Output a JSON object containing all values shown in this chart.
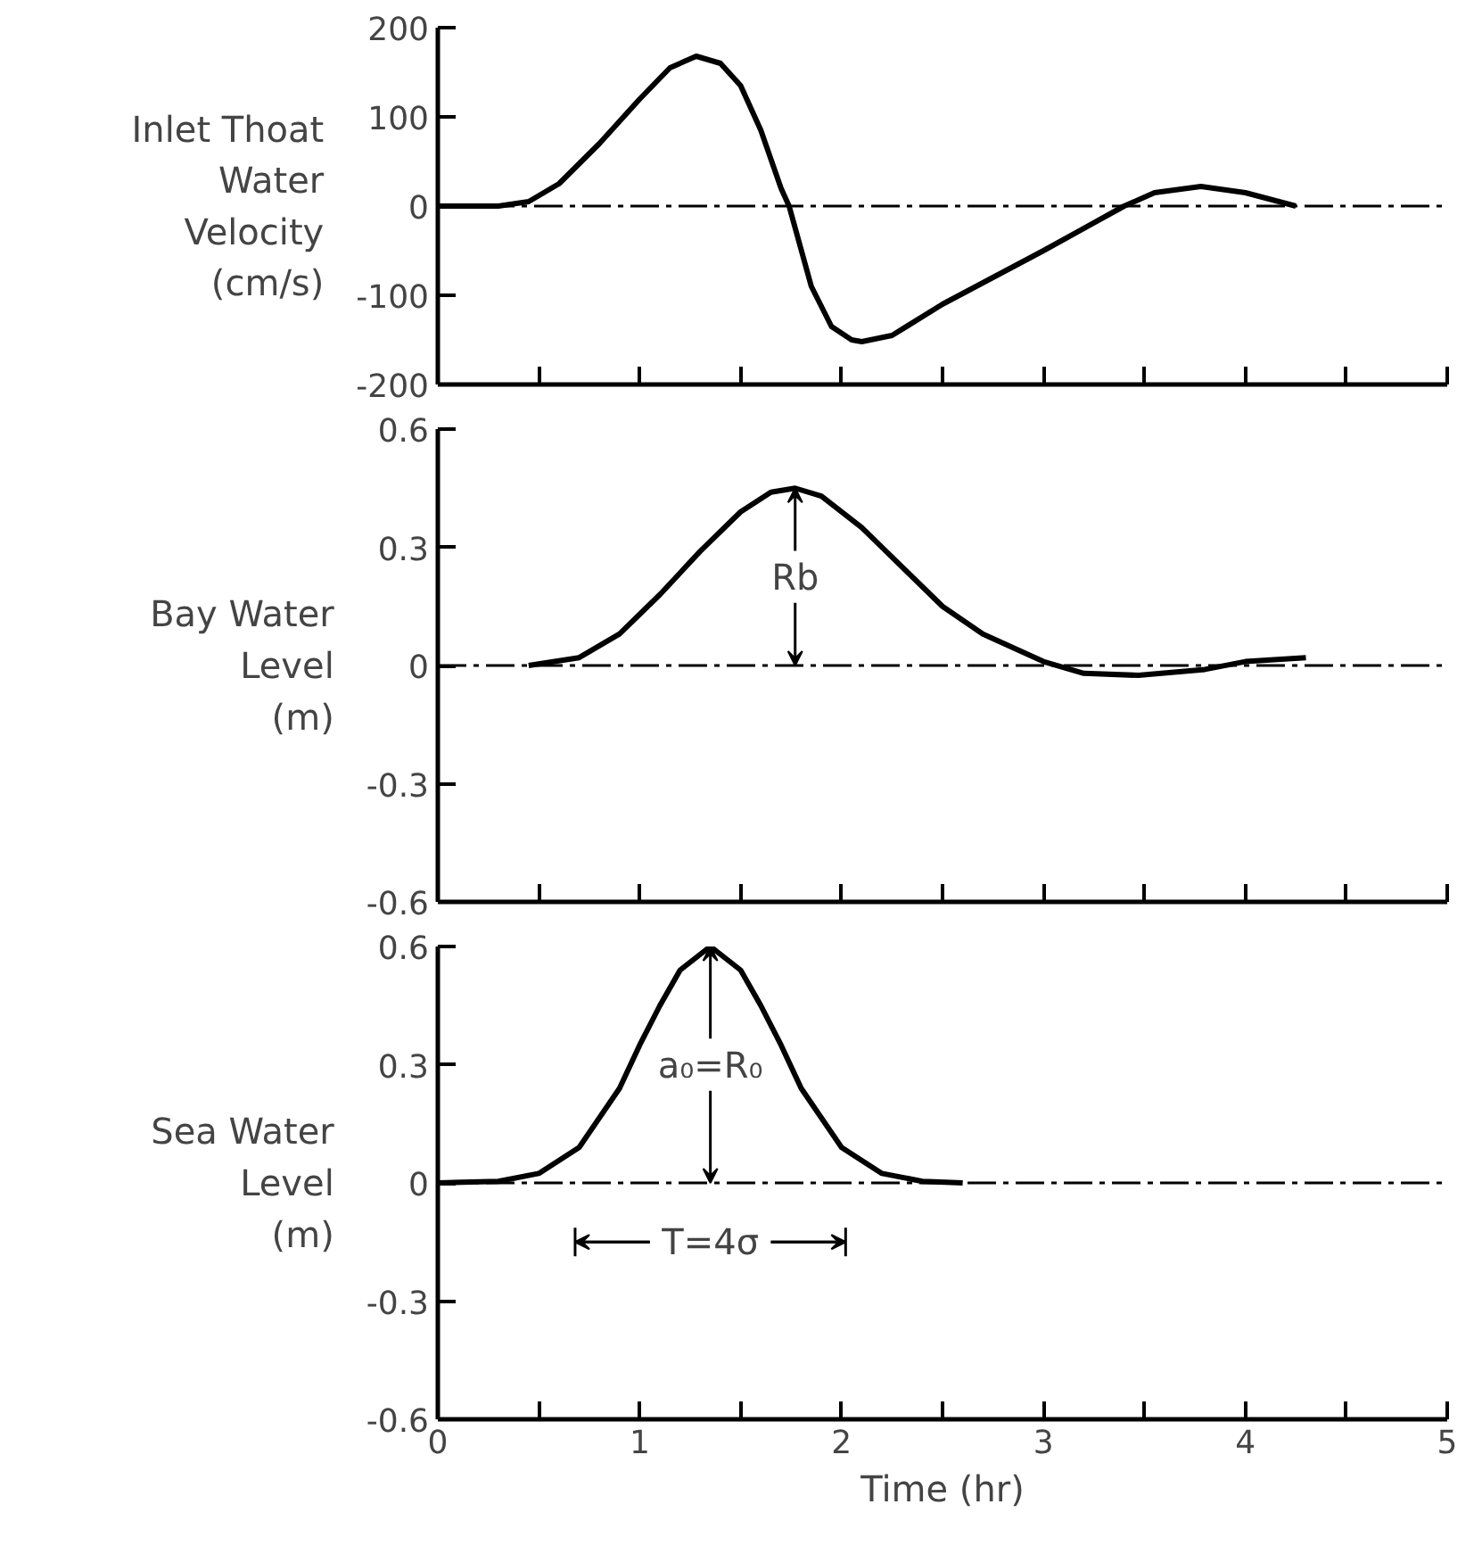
{
  "chart_data": [
    {
      "type": "line",
      "ylabel": "Inlet Thoat\nWater\nVelocity\n(cm/s)",
      "x": [
        0,
        0.3,
        0.45,
        0.6,
        0.8,
        1.0,
        1.15,
        1.28,
        1.4,
        1.5,
        1.6,
        1.7,
        1.74,
        1.85,
        1.95,
        2.05,
        2.1,
        2.25,
        2.5,
        3.0,
        3.4,
        3.55,
        3.78,
        4.0,
        4.25
      ],
      "series": [
        {
          "color": "#000000",
          "values": [
            0,
            0,
            5,
            25,
            70,
            120,
            155,
            168,
            160,
            135,
            85,
            20,
            0,
            -90,
            -135,
            -150,
            -152,
            -145,
            -110,
            -50,
            0,
            15,
            22,
            15,
            0
          ]
        }
      ],
      "xlim": [
        0,
        5
      ],
      "xticks": [
        {
          "value": 0,
          "label": null
        },
        {
          "value": 0.5,
          "label": null
        },
        {
          "value": 1,
          "label": null
        },
        {
          "value": 1.5,
          "label": null
        },
        {
          "value": 2,
          "label": null
        },
        {
          "value": 2.5,
          "label": null
        },
        {
          "value": 3,
          "label": null
        },
        {
          "value": 3.5,
          "label": null
        },
        {
          "value": 4,
          "label": null
        },
        {
          "value": 4.5,
          "label": null
        },
        {
          "value": 5,
          "label": null
        }
      ],
      "ylim": [
        -200,
        200
      ],
      "yticks": [
        -200,
        -100,
        0,
        100,
        200
      ],
      "tick_labels": "y",
      "grid": false,
      "line_style": "solid",
      "ref_lines": [
        {
          "axis": "y",
          "value": 0,
          "line_style": "dashed",
          "color": "#000000"
        }
      ]
    },
    {
      "type": "line",
      "ylabel": "Bay Water\nLevel\n(m)",
      "x": [
        0.45,
        0.7,
        0.9,
        1.1,
        1.3,
        1.5,
        1.65,
        1.77,
        1.9,
        2.1,
        2.3,
        2.5,
        2.7,
        3.0,
        3.2,
        3.47,
        3.8,
        4.0,
        4.3
      ],
      "series": [
        {
          "color": "#000000",
          "values": [
            0,
            0.02,
            0.08,
            0.18,
            0.29,
            0.39,
            0.44,
            0.45,
            0.43,
            0.35,
            0.25,
            0.15,
            0.08,
            0.01,
            -0.02,
            -0.025,
            -0.01,
            0.01,
            0.02
          ]
        }
      ],
      "xlim": [
        0,
        5
      ],
      "xticks": [
        {
          "value": 0,
          "label": null
        },
        {
          "value": 0.5,
          "label": null
        },
        {
          "value": 1,
          "label": null
        },
        {
          "value": 1.5,
          "label": null
        },
        {
          "value": 2,
          "label": null
        },
        {
          "value": 2.5,
          "label": null
        },
        {
          "value": 3,
          "label": null
        },
        {
          "value": 3.5,
          "label": null
        },
        {
          "value": 4,
          "label": null
        },
        {
          "value": 4.5,
          "label": null
        },
        {
          "value": 5,
          "label": null
        }
      ],
      "ylim": [
        -0.6,
        0.6
      ],
      "yticks": [
        -0.6,
        -0.3,
        0,
        0.3,
        0.6
      ],
      "tick_labels": "y",
      "grid": false,
      "line_style": "solid",
      "ref_lines": [
        {
          "axis": "y",
          "value": 0,
          "line_style": "dashed",
          "color": "#000000"
        }
      ],
      "annotations": [
        {
          "text": "Rb",
          "x": 1.77,
          "y": 0.45
        }
      ]
    },
    {
      "type": "line",
      "ylabel": "Sea Water\nLevel\n(m)",
      "xlabel": "Time (hr)",
      "x": [
        0,
        0.3,
        0.5,
        0.7,
        0.9,
        1.0,
        1.1,
        1.2,
        1.35,
        1.5,
        1.6,
        1.7,
        1.8,
        2.0,
        2.2,
        2.4,
        2.6
      ],
      "series": [
        {
          "color": "#000000",
          "values": [
            0,
            0.004,
            0.024,
            0.09,
            0.24,
            0.35,
            0.45,
            0.54,
            0.6,
            0.54,
            0.45,
            0.35,
            0.24,
            0.09,
            0.024,
            0.004,
            0
          ]
        }
      ],
      "xlim": [
        0,
        5
      ],
      "xticks": [
        0,
        {
          "value": 0.5,
          "label": null
        },
        1,
        {
          "value": 1.5,
          "label": null
        },
        2,
        {
          "value": 2.5,
          "label": null
        },
        3,
        {
          "value": 3.5,
          "label": null
        },
        4,
        {
          "value": 4.5,
          "label": null
        },
        5
      ],
      "ylim": [
        -0.6,
        0.6
      ],
      "yticks": [
        -0.6,
        -0.3,
        0,
        0.3,
        0.6
      ],
      "grid": false,
      "line_style": "solid",
      "ref_lines": [
        {
          "axis": "y",
          "value": 0,
          "line_style": "dashed",
          "color": "#000000"
        }
      ],
      "annotations": [
        {
          "text": "a₀=R₀",
          "x": 1.35,
          "y": 0.6
        },
        "T=4σ"
      ]
    }
  ]
}
